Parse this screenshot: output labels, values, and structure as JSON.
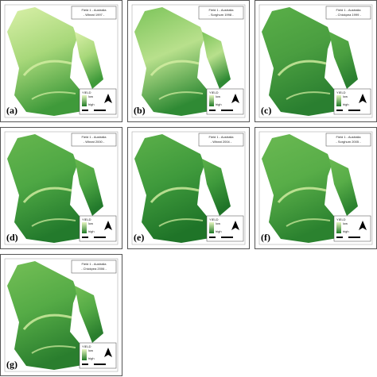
{
  "panels": [
    {
      "label": "(a)",
      "title": [
        "Field 1 - Australia",
        "- Wheat 1997 -"
      ]
    },
    {
      "label": "(b)",
      "title": [
        "Field 1 - Australia",
        "- Sorghum 1998 -"
      ]
    },
    {
      "label": "(c)",
      "title": [
        "Field 1 - Australia",
        "- Chickpea 1999 -"
      ]
    },
    {
      "label": "(d)",
      "title": [
        "Field 1 - Australia",
        "- Wheat 2000 -"
      ]
    },
    {
      "label": "(e)",
      "title": [
        "Field 1 - Australia",
        "- Wheat 2004 -"
      ]
    },
    {
      "label": "(f)",
      "title": [
        "Field 1 - Australia",
        "- Sorghum 2005 -"
      ]
    },
    {
      "label": "(g)",
      "title": [
        "Field 1 - Australia",
        "- Chickpea 2006 -"
      ]
    }
  ],
  "legend": {
    "title": "YIELD",
    "low": "low",
    "high": "high"
  }
}
